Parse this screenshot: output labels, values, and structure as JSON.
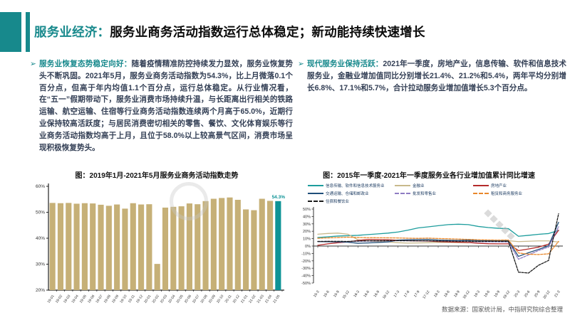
{
  "header": {
    "title_prefix": "服务业经济：",
    "title_main": "服务业商务活动指数运行总体稳定；新动能持续快速增长"
  },
  "left_section": {
    "marker": "➢",
    "lead": "服务业恢复态势稳定向好：",
    "body": "随着疫情精准防控持续发力显效，服务业恢复势头不断巩固。2021年5月，服务业商务活动指数为54.3%，比上月微落0.1个百分点，但高于年内均值1.1个百分点，运行总体稳定。从行业情况看，在“五一”假期带动下，服务业消费市场持续升温，与长距离出行相关的铁路运输、航空运输、住宿等行业商务活动指数连续两个月高于65.0%，近期行业保持较高活跃度；与居民消费密切相关的零售、餐饮、文化体育娱乐等行业商务活动指数均高于上月，且位于58.0%以上较高景气区间，消费市场呈现积极恢复势头。"
  },
  "right_section": {
    "marker": "➢",
    "lead": "现代服务业保持活跃：",
    "body": "2021年一季度，房地产业，信息传输、软件和信息技术服务业，金融业增加值同比分别增长21.4%、21.2%和5.4%，两年平均分别增长6.8%、17.1%和5.7%，合计拉动服务业增加值增长5.3个百分点。"
  },
  "footer": {
    "source_note": "数据来源：国家统计局，中指研究院综合整理"
  },
  "colors": {
    "accent_teal": "#17898C",
    "body_text": "#333F55",
    "bar_tan": "#C6B077",
    "bar_highlight_teal": "#0E9396",
    "axis": "#222222"
  },
  "chart_data": [
    {
      "type": "bar",
      "title": "图：2019年1月-2021年5月服务业商务活动指数走势",
      "categories": [
        "19-01",
        "19-02",
        "19-03",
        "19-04",
        "19-05",
        "19-06",
        "19-07",
        "19-08",
        "19-09",
        "19-10",
        "19-11",
        "19-12",
        "20-01",
        "20-02",
        "20-03",
        "20-04",
        "20-05",
        "20-06",
        "20-07",
        "20-08",
        "20-09",
        "20-10",
        "20-11",
        "20-12",
        "21-01",
        "21-02",
        "21-03",
        "21-04",
        "21-05"
      ],
      "values": [
        53.6,
        53.5,
        53.6,
        53.3,
        53.5,
        53.4,
        52.9,
        52.5,
        53.0,
        51.4,
        53.5,
        53.0,
        53.1,
        30.1,
        51.8,
        52.1,
        52.3,
        53.4,
        53.1,
        54.3,
        55.2,
        55.5,
        55.7,
        54.8,
        51.1,
        50.8,
        55.2,
        54.4,
        54.3
      ],
      "ylim": [
        20,
        60
      ],
      "ytick_values": [
        60,
        50,
        40,
        30,
        20
      ],
      "ytick_labels": [
        "60%",
        "50%",
        "40%",
        "30%",
        "20%"
      ],
      "bar_color": "#C6B077",
      "highlight_index": 28,
      "highlight_color": "#0E9396",
      "highlight_label": "54.3%",
      "grid": false
    },
    {
      "type": "line",
      "title": "图：2015年一季度-2021年一季度服务业各行业增加值累计同比增速",
      "x": [
        "15-3",
        "15-6",
        "15-9",
        "15-12",
        "16-3",
        "16-6",
        "16-9",
        "16-12",
        "17-3",
        "17-6",
        "17-9",
        "17-12",
        "18-3",
        "18-6",
        "18-9",
        "18-12",
        "19-3",
        "19-6",
        "19-9",
        "19-12",
        "20-3",
        "20-6",
        "20-9",
        "20-12",
        "21-3"
      ],
      "ylim": [
        -50,
        50
      ],
      "ytick_step": 10,
      "legend_position": "top",
      "grid": false,
      "series": [
        {
          "name": "信息传输、软件和信息技术服务业",
          "color": "#1D9D9D",
          "dash": "solid",
          "values": [
            11.5,
            12.5,
            13.5,
            14.0,
            14.5,
            15.5,
            16.5,
            17.5,
            19.0,
            21.5,
            24.5,
            26.0,
            27.5,
            29.0,
            29.5,
            29.0,
            26.5,
            25.0,
            24.0,
            23.5,
            13.2,
            14.5,
            15.9,
            16.9,
            21.2
          ]
        },
        {
          "name": "金融业",
          "color": "#C8B98C",
          "dash": "solid",
          "values": [
            16.0,
            17.0,
            17.5,
            16.0,
            8.5,
            7.0,
            6.0,
            5.5,
            4.5,
            4.0,
            4.2,
            4.5,
            5.0,
            4.8,
            4.6,
            4.4,
            7.0,
            7.3,
            7.4,
            7.2,
            6.0,
            6.5,
            7.0,
            7.0,
            5.4
          ]
        },
        {
          "name": "房地产业",
          "color": "#B42B2B",
          "dash": "solid",
          "values": [
            1.0,
            3.0,
            4.5,
            5.5,
            7.5,
            9.0,
            8.8,
            8.5,
            7.8,
            7.2,
            7.0,
            6.8,
            6.0,
            5.5,
            5.2,
            4.8,
            3.8,
            3.2,
            3.0,
            3.0,
            -6.1,
            -4.0,
            -1.5,
            2.5,
            21.4
          ]
        },
        {
          "name": "交通运输、仓储和邮政业",
          "color": "#1F4E79",
          "dash": "solid",
          "values": [
            6.0,
            5.8,
            5.5,
            5.2,
            3.8,
            4.2,
            4.8,
            5.5,
            8.0,
            8.5,
            8.8,
            9.0,
            8.2,
            7.8,
            7.6,
            8.0,
            7.3,
            7.2,
            7.1,
            7.1,
            -14.0,
            -9.0,
            -4.5,
            0.5,
            32.1
          ]
        },
        {
          "name": "批发和零售业",
          "color": "#8E7CC3",
          "dash": "dashed",
          "values": [
            6.2,
            6.3,
            6.2,
            6.1,
            6.4,
            6.6,
            6.8,
            7.0,
            7.2,
            7.3,
            7.2,
            7.1,
            6.8,
            6.7,
            6.6,
            6.2,
            5.8,
            5.7,
            5.6,
            5.5,
            -17.8,
            -12.0,
            -6.0,
            -1.3,
            26.0
          ]
        },
        {
          "name": "租赁和商务服务业",
          "color": "#E8872B",
          "dash": "dashed",
          "values": [
            10.5,
            11.0,
            11.5,
            12.0,
            11.5,
            11.3,
            11.2,
            11.1,
            10.9,
            10.6,
            10.4,
            10.7,
            10.2,
            9.8,
            9.4,
            9.0,
            8.5,
            8.2,
            8.0,
            8.2,
            -9.4,
            -11.0,
            -11.5,
            -10.5,
            6.3
          ]
        },
        {
          "name": "住宿和餐饮业",
          "color": "#1A1A1A",
          "dash": "dashed",
          "values": [
            6.2,
            6.3,
            6.4,
            6.2,
            6.9,
            7.1,
            7.2,
            7.3,
            7.3,
            7.2,
            7.1,
            7.1,
            6.8,
            6.7,
            6.5,
            6.5,
            6.3,
            6.4,
            6.4,
            6.3,
            -35.3,
            -36.5,
            -26.0,
            -19.5,
            43.7
          ]
        }
      ]
    }
  ]
}
